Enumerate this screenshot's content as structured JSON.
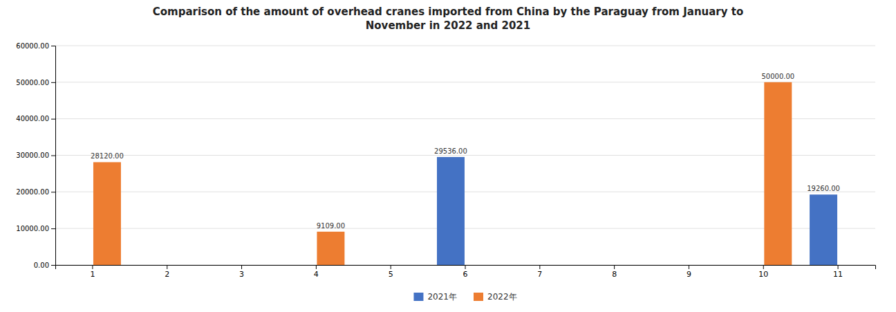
{
  "chart_data": {
    "type": "bar",
    "title": "Comparison of the amount of overhead cranes imported from China by the Paraguay from January to\nNovember in 2022 and 2021",
    "categories": [
      "1",
      "2",
      "3",
      "4",
      "5",
      "6",
      "7",
      "8",
      "9",
      "10",
      "11"
    ],
    "series": [
      {
        "name": "2021年",
        "color": "#4472C4",
        "values": [
          0,
          0,
          0,
          0,
          0,
          29536.0,
          0,
          0,
          0,
          0,
          19260.0
        ],
        "value_labels": [
          null,
          null,
          null,
          null,
          null,
          "29536.00",
          null,
          null,
          null,
          null,
          "19260.00"
        ]
      },
      {
        "name": "2022年",
        "color": "#ED7D31",
        "values": [
          28120.0,
          0,
          0,
          9109.0,
          0,
          0,
          0,
          0,
          0,
          50000.0,
          0
        ],
        "value_labels": [
          "28120.00",
          null,
          null,
          "9109.00",
          null,
          null,
          null,
          null,
          null,
          "50000.00",
          null
        ]
      }
    ],
    "ylim": [
      0,
      60000
    ],
    "yticks": [
      {
        "value": 0,
        "label": "0.00"
      },
      {
        "value": 10000,
        "label": "10000.00"
      },
      {
        "value": 20000,
        "label": "20000.00"
      },
      {
        "value": 30000,
        "label": "30000.00"
      },
      {
        "value": 40000,
        "label": "40000.00"
      },
      {
        "value": 50000,
        "label": "50000.00"
      },
      {
        "value": 60000,
        "label": "60000.00"
      }
    ],
    "grid": true,
    "data_labels": true,
    "legend": "bottom"
  }
}
